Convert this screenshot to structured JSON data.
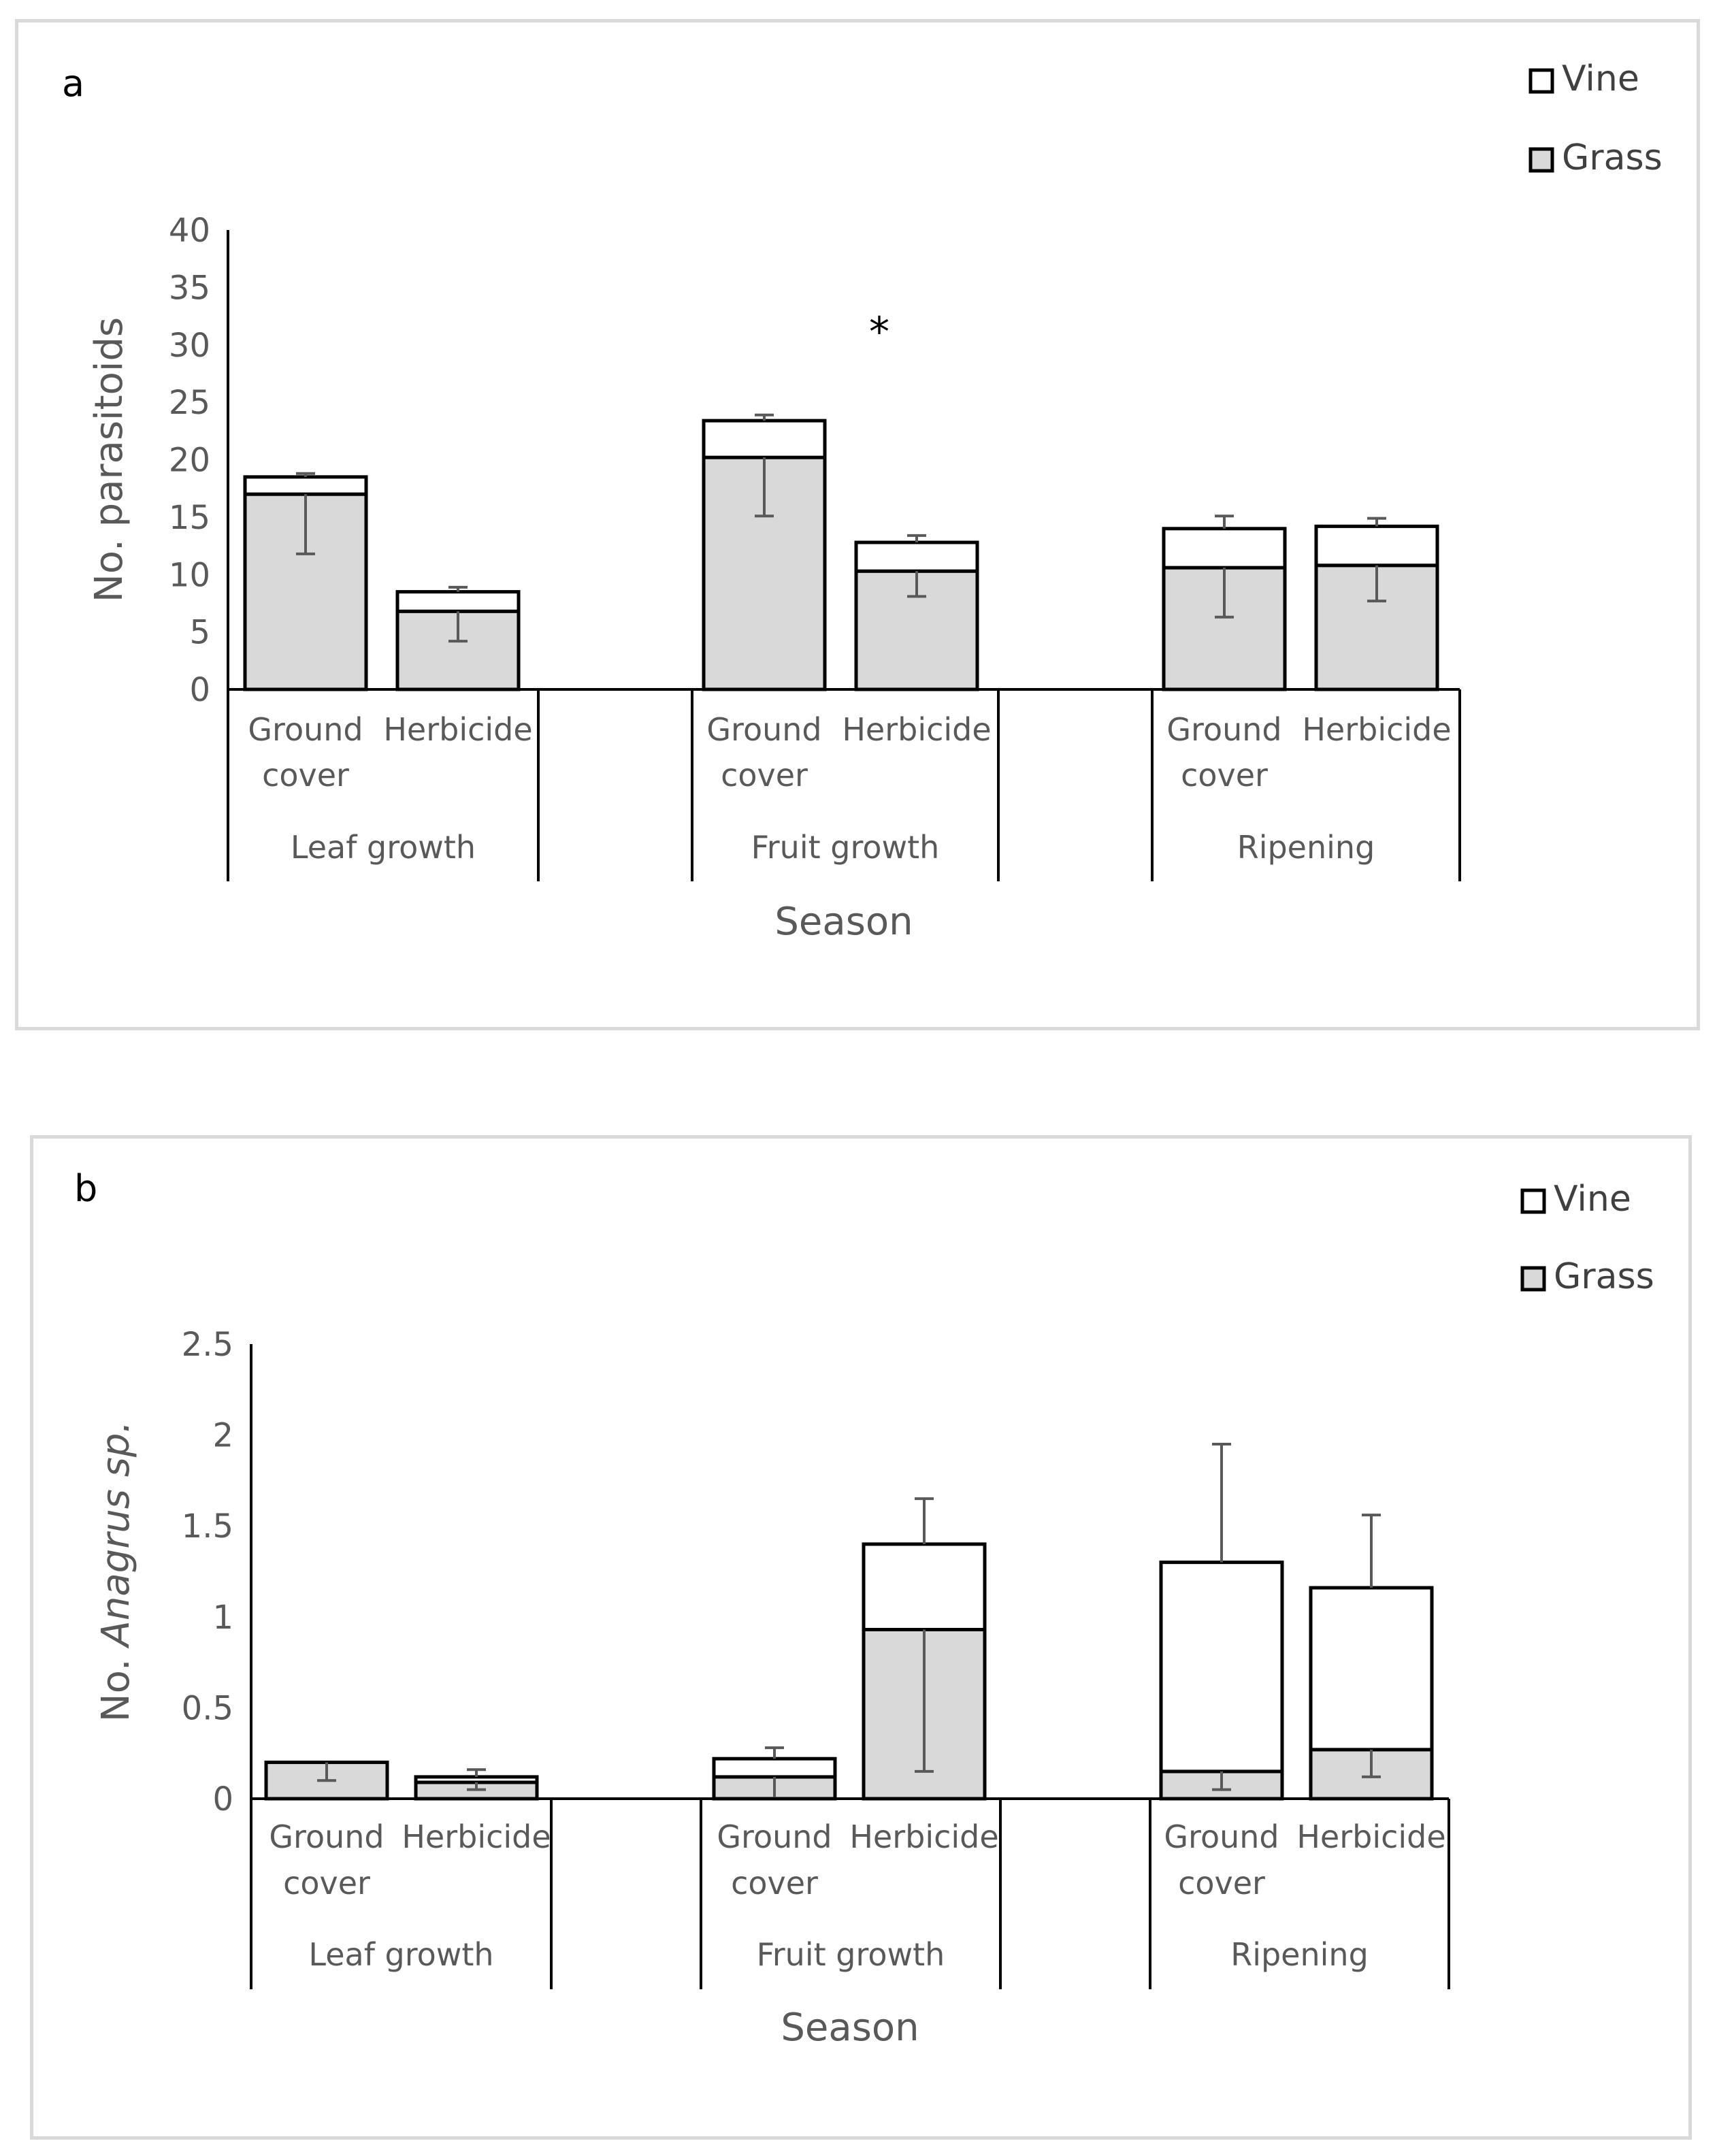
{
  "chart_data": [
    {
      "id": "a",
      "type": "bar",
      "stacked": true,
      "panel_label": "a",
      "ylabel": "No. parasitoids",
      "ylabel_italic": "",
      "xlabel": "Season",
      "ylim": [
        0,
        40
      ],
      "yticks": [
        "0",
        "5",
        "10",
        "15",
        "20",
        "25",
        "30",
        "35",
        "40"
      ],
      "legend": [
        "Vine",
        "Grass"
      ],
      "legend_position": "top-right",
      "groups": [
        "Leaf growth",
        "Fruit growth",
        "Ripening"
      ],
      "categories": [
        {
          "line1": "Ground",
          "line2": "cover"
        },
        {
          "line1": "Herbicide",
          "line2": ""
        },
        {
          "line1": "Ground",
          "line2": "cover"
        },
        {
          "line1": "Herbicide",
          "line2": ""
        },
        {
          "line1": "Ground",
          "line2": "cover"
        },
        {
          "line1": "Herbicide",
          "line2": ""
        }
      ],
      "series": [
        {
          "name": "Grass",
          "values": [
            17.0,
            6.8,
            20.2,
            10.3,
            10.6,
            10.8
          ],
          "err": [
            5.2,
            2.6,
            5.1,
            2.2,
            4.3,
            3.1
          ]
        },
        {
          "name": "Vine",
          "values": [
            1.5,
            1.7,
            3.2,
            2.5,
            3.4,
            3.4
          ],
          "err": [
            0.3,
            0.4,
            0.5,
            0.6,
            1.1,
            0.7
          ]
        }
      ],
      "annotations": [
        {
          "text": "*",
          "group": 1
        }
      ]
    },
    {
      "id": "b",
      "type": "bar",
      "stacked": true,
      "panel_label": "b",
      "ylabel": "No. ",
      "ylabel_italic": "Anagrus sp.",
      "xlabel": "Season",
      "ylim": [
        0,
        2.5
      ],
      "yticks": [
        "0",
        "0.5",
        "1",
        "1.5",
        "2",
        "2.5"
      ],
      "legend": [
        "Vine",
        "Grass"
      ],
      "legend_position": "top-right",
      "groups": [
        "Leaf growth",
        "Fruit growth",
        "Ripening"
      ],
      "categories": [
        {
          "line1": "Ground",
          "line2": "cover"
        },
        {
          "line1": "Herbicide",
          "line2": ""
        },
        {
          "line1": "Ground",
          "line2": "cover"
        },
        {
          "line1": "Herbicide",
          "line2": ""
        },
        {
          "line1": "Ground",
          "line2": "cover"
        },
        {
          "line1": "Herbicide",
          "line2": ""
        }
      ],
      "series": [
        {
          "name": "Grass",
          "values": [
            0.2,
            0.09,
            0.12,
            0.93,
            0.15,
            0.27
          ],
          "err": [
            0.1,
            0.04,
            0.12,
            0.78,
            0.1,
            0.15
          ]
        },
        {
          "name": "Vine",
          "values": [
            0.0,
            0.03,
            0.1,
            0.47,
            1.15,
            0.89
          ],
          "err": [
            0.0,
            0.04,
            0.06,
            0.25,
            0.65,
            0.4
          ]
        }
      ],
      "annotations": []
    }
  ]
}
